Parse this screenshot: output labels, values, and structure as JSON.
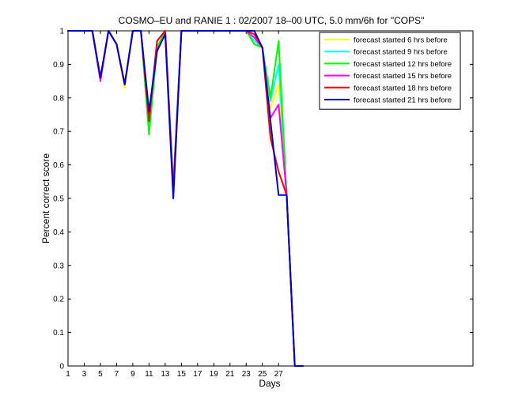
{
  "chart_data": {
    "type": "line",
    "title": "COSMO–EU and RANIE 1 : 02/2007 18–00 UTC, 5.0 mm/6h for \"COPS\"",
    "xlabel": "Days",
    "ylabel": "Percent correct score",
    "xlim": [
      1,
      51
    ],
    "ylim": [
      0,
      1
    ],
    "xticks": [
      1,
      3,
      5,
      7,
      9,
      11,
      13,
      15,
      17,
      19,
      21,
      23,
      25,
      27
    ],
    "yticks": [
      0,
      0.1,
      0.2,
      0.3,
      0.4,
      0.5,
      0.6,
      0.7,
      0.8,
      0.9,
      1
    ],
    "ytick_labels": [
      "0",
      "0.1",
      "0.2",
      "0.3",
      "0.4",
      "0.5",
      "0.6",
      "0.7",
      "0.8",
      "0.9",
      "1"
    ],
    "grid": false,
    "legend_position": "top-right",
    "x": [
      1,
      2,
      3,
      4,
      5,
      6,
      7,
      8,
      9,
      10,
      11,
      12,
      13,
      14,
      15,
      16,
      17,
      18,
      19,
      20,
      21,
      22,
      23,
      24,
      25,
      26,
      27,
      28,
      29,
      30
    ],
    "series": [
      {
        "name": "forecast started 6 hrs before",
        "color": "#ffff00",
        "values": [
          1,
          1,
          1,
          1,
          0.86,
          1,
          0.96,
          0.83,
          1,
          1,
          0.71,
          0.95,
          1,
          0.54,
          1,
          1,
          1,
          1,
          1,
          1,
          1,
          1,
          1,
          0.98,
          0.95,
          0.77,
          0.84,
          0.51,
          0,
          0
        ]
      },
      {
        "name": "forecast started 9 hrs before",
        "color": "#00ffff",
        "values": [
          1,
          1,
          1,
          1,
          0.86,
          1,
          0.96,
          0.84,
          1,
          1,
          0.7,
          0.95,
          1,
          0.54,
          1,
          1,
          1,
          1,
          1,
          1,
          1,
          1,
          1,
          0.97,
          0.95,
          0.79,
          0.9,
          0.51,
          0,
          0
        ]
      },
      {
        "name": "forecast started 12 hrs before",
        "color": "#00ff00",
        "values": [
          1,
          1,
          1,
          1,
          0.86,
          1,
          0.96,
          0.84,
          1,
          1,
          0.69,
          0.95,
          1,
          0.54,
          1,
          1,
          1,
          1,
          1,
          1,
          1,
          1,
          1,
          0.96,
          0.95,
          0.8,
          0.97,
          0.51,
          0,
          0
        ]
      },
      {
        "name": "forecast started 15 hrs before",
        "color": "#ff00ff",
        "values": [
          1,
          1,
          1,
          1,
          0.85,
          1,
          0.96,
          0.84,
          1,
          1,
          0.74,
          0.97,
          1,
          0.53,
          1,
          1,
          1,
          1,
          1,
          1,
          1,
          1,
          1,
          0.98,
          0.95,
          0.74,
          0.78,
          0.51,
          0,
          0
        ]
      },
      {
        "name": "forecast started 18 hrs before",
        "color": "#ff0000",
        "values": [
          1,
          1,
          1,
          1,
          0.86,
          1,
          0.96,
          0.84,
          1,
          1,
          0.73,
          0.97,
          1,
          0.52,
          1,
          1,
          1,
          1,
          1,
          1,
          1,
          1,
          1,
          0.99,
          0.95,
          0.68,
          0.58,
          0.51,
          0,
          0
        ]
      },
      {
        "name": "forecast started 21 hrs before",
        "color": "#0000cc",
        "values": [
          1,
          1,
          1,
          1,
          0.86,
          1,
          0.96,
          0.84,
          1,
          1,
          0.76,
          0.94,
          0.99,
          0.5,
          1,
          1,
          1,
          1,
          1,
          1,
          1,
          1,
          1,
          1,
          0.95,
          0.73,
          0.51,
          0.51,
          0,
          0
        ]
      }
    ]
  }
}
